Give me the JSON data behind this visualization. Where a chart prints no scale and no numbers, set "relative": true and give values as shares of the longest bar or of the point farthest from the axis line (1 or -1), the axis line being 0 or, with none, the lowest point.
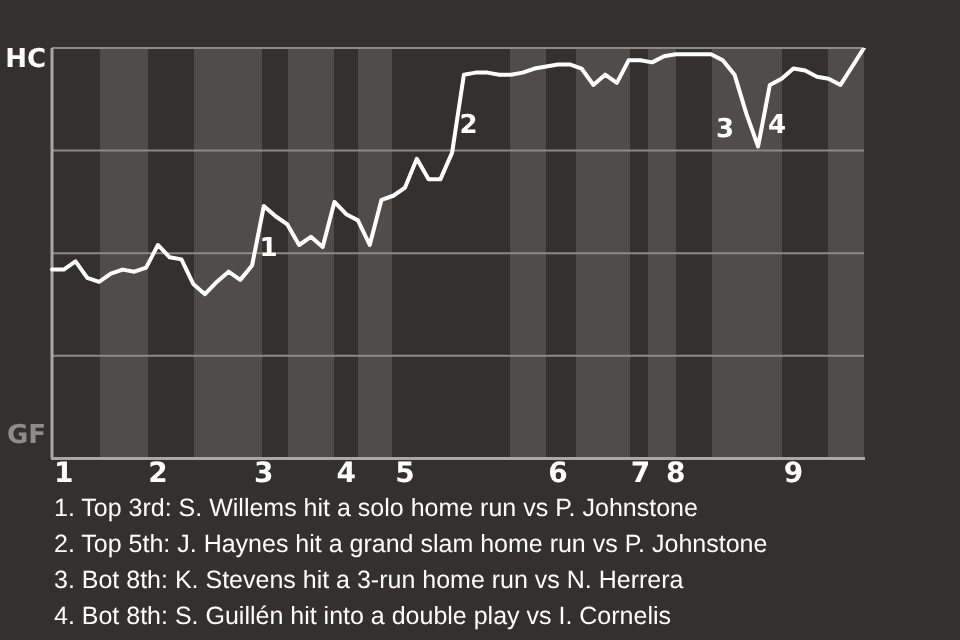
{
  "chart_data": {
    "type": "line",
    "relative": true,
    "categories": [
      null,
      "1",
      null,
      null,
      null,
      null,
      null,
      null,
      null,
      "2",
      null,
      null,
      null,
      null,
      null,
      null,
      null,
      null,
      "3",
      null,
      null,
      null,
      null,
      null,
      null,
      "4",
      null,
      null,
      null,
      null,
      "5",
      null,
      null,
      null,
      null,
      null,
      null,
      null,
      null,
      null,
      null,
      null,
      null,
      "6",
      null,
      null,
      null,
      null,
      null,
      null,
      "7",
      null,
      null,
      "8",
      null,
      null,
      null,
      null,
      null,
      null,
      null,
      null,
      null,
      "9",
      null,
      null,
      null,
      null,
      null,
      null
    ],
    "series": [
      {
        "color": "#ffffff",
        "values": [
          0.46,
          0.46,
          0.48,
          0.44,
          0.43,
          0.45,
          0.46,
          0.455,
          0.465,
          0.52,
          0.49,
          0.485,
          0.425,
          0.4,
          0.43,
          0.455,
          0.435,
          0.47,
          0.615,
          0.59,
          0.57,
          0.52,
          0.54,
          0.515,
          0.625,
          0.595,
          0.58,
          0.52,
          0.63,
          0.64,
          0.66,
          0.73,
          0.68,
          0.68,
          0.745,
          0.935,
          0.94,
          0.94,
          0.935,
          0.935,
          0.94,
          0.95,
          0.955,
          0.96,
          0.96,
          0.95,
          0.91,
          0.935,
          0.915,
          0.97,
          0.97,
          0.965,
          0.98,
          0.985,
          0.985,
          0.985,
          0.985,
          0.97,
          0.935,
          0.84,
          0.76,
          0.91,
          0.925,
          0.95,
          0.945,
          0.93,
          0.925,
          0.91,
          0.955,
          1.0
        ]
      }
    ],
    "grid": "y",
    "marker": "none",
    "annotations": [
      "HC",
      "GF",
      "1",
      "2",
      "3",
      "4",
      "1. Top 3rd: S. Willems hit a solo home run vs P. Johnstone",
      "2. Top 5th: J. Haynes hit a grand slam home run vs P. Johnstone",
      "3. Bot 8th: K. Stevens hit a 3-run home run vs N. Herrera",
      "4. Bot 8th: S. Guillén hit into a double play vs I. Cornelis"
    ]
  }
}
